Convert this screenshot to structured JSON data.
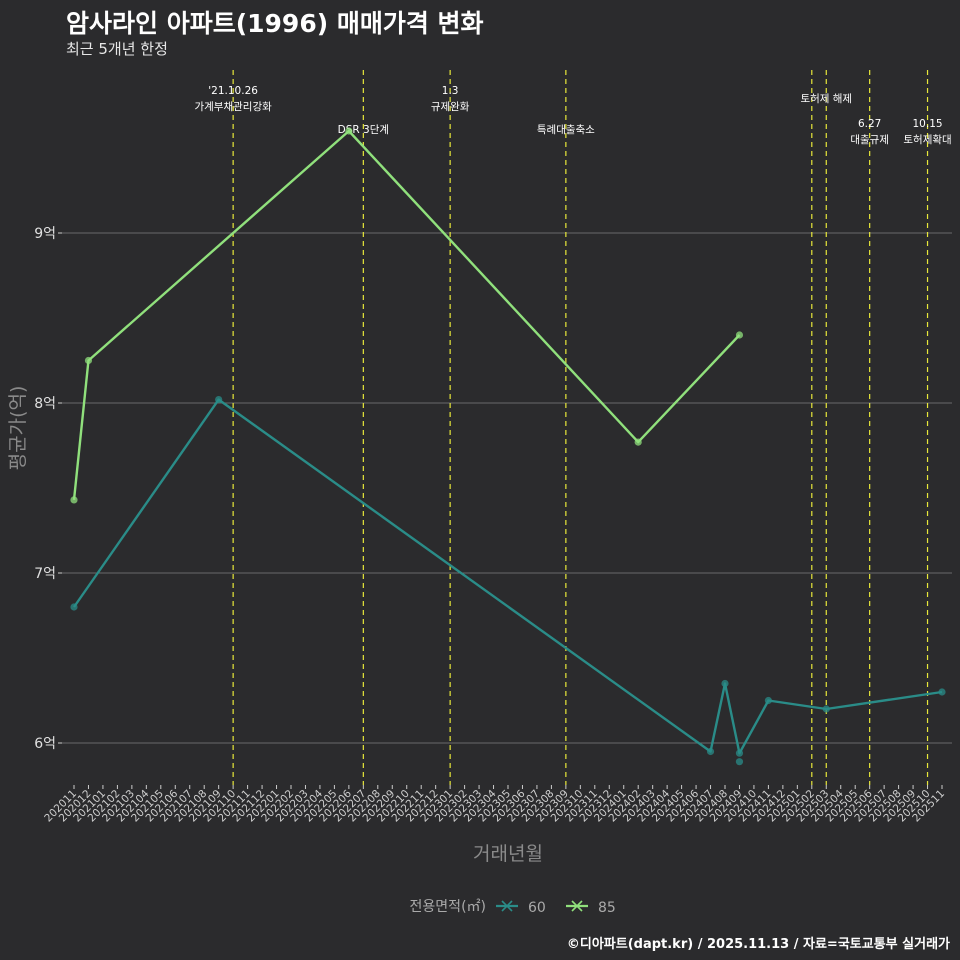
{
  "title": "암사라인 아파트(1996) 매매가격 변화",
  "subtitle": "최근 5개년 한정",
  "caption": "©디아파트(dapt.kr) / 2025.11.13 / 자료=국토교통부 실거래가",
  "colors": {
    "background": "#2b2b2d",
    "grid": "#6a6a6a",
    "event_line": "#e8e83a",
    "series_60": "#2a8c88",
    "series_85": "#90e07c"
  },
  "chart_data": {
    "type": "line",
    "title": "암사라인 아파트(1996) 매매가격 변화",
    "subtitle": "최근 5개년 한정",
    "xlabel": "거래년월",
    "ylabel": "평균가(억)",
    "ylim": [
      5.7,
      9.95
    ],
    "y_ticks": [
      6,
      7,
      8,
      9
    ],
    "y_tick_labels": [
      "6억",
      "7억",
      "8억",
      "9억"
    ],
    "grid": true,
    "legend": {
      "title": "전용면적(㎡)",
      "position": "bottom",
      "entries": [
        "60",
        "85"
      ]
    },
    "x_categories": [
      "202011",
      "202012",
      "202101",
      "202102",
      "202103",
      "202104",
      "202105",
      "202106",
      "202107",
      "202108",
      "202109",
      "202110",
      "202111",
      "202112",
      "202201",
      "202202",
      "202203",
      "202204",
      "202205",
      "202206",
      "202207",
      "202208",
      "202209",
      "202210",
      "202211",
      "202212",
      "202301",
      "202302",
      "202303",
      "202304",
      "202305",
      "202306",
      "202307",
      "202308",
      "202309",
      "202310",
      "202311",
      "202312",
      "202401",
      "202402",
      "202403",
      "202404",
      "202405",
      "202406",
      "202407",
      "202408",
      "202409",
      "202410",
      "202411",
      "202412",
      "202501",
      "202502",
      "202503",
      "202504",
      "202505",
      "202506",
      "202507",
      "202508",
      "202509",
      "202510",
      "202511"
    ],
    "series": [
      {
        "name": "60",
        "color": "#2a8c88",
        "points": [
          {
            "x": "202011",
            "y": 6.8
          },
          {
            "x": "202109",
            "y": 8.02
          },
          {
            "x": "202407",
            "y": 5.95
          },
          {
            "x": "202408",
            "y": 6.35
          },
          {
            "x": "202409",
            "y": 5.94
          },
          {
            "x": "202411",
            "y": 6.25
          },
          {
            "x": "202503",
            "y": 6.2
          },
          {
            "x": "202511",
            "y": 6.3
          }
        ],
        "extra_points": [
          {
            "x": "202409",
            "y": 5.89
          }
        ]
      },
      {
        "name": "85",
        "color": "#90e07c",
        "points": [
          {
            "x": "202011",
            "y": 7.43
          },
          {
            "x": "202012",
            "y": 8.25
          },
          {
            "x": "202206",
            "y": 9.6
          },
          {
            "x": "202402",
            "y": 7.77
          },
          {
            "x": "202409",
            "y": 8.4
          }
        ]
      }
    ],
    "events": [
      {
        "x": "202110",
        "labels": [
          "'21.10.26",
          "가계부채관리강화"
        ],
        "row": 0
      },
      {
        "x": "202207",
        "labels": [
          "DSR 3단계"
        ],
        "row": 1
      },
      {
        "x": "202301",
        "labels": [
          "1.3",
          "규제완화"
        ],
        "row": 0
      },
      {
        "x": "202309",
        "labels": [
          "특례대출축소"
        ],
        "row": 1
      },
      {
        "x": "202502",
        "labels": [],
        "row": 0
      },
      {
        "x": "202503",
        "labels": [
          "토허제 해제"
        ],
        "row": 2
      },
      {
        "x": "202506",
        "labels": [
          "6.27",
          "대출규제"
        ],
        "row": 3
      },
      {
        "x": "202510",
        "labels": [
          "10.15",
          "토허제확대"
        ],
        "row": 3
      }
    ]
  }
}
